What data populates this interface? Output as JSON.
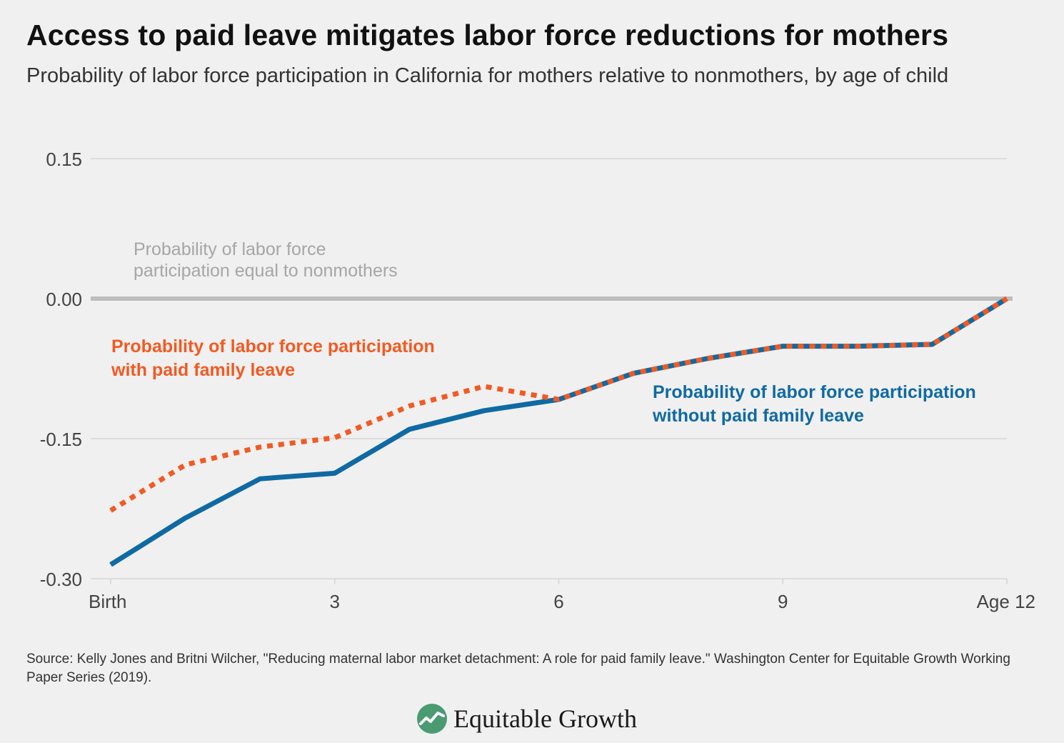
{
  "title": "Access to paid leave mitigates labor force reductions for mothers",
  "subtitle": "Probability of labor force participation in California for mothers relative to nonmothers, by age of child",
  "source": "Source: Kelly Jones and Britni Wilcher, \"Reducing maternal labor market detachment: A role for paid family leave.\" Washington Center for Equitable Growth Working Paper Series (2019).",
  "brand": "Equitable Growth",
  "colors": {
    "with_leave": "#f15a22",
    "without_leave": "#0f6aa3",
    "reference": "#bdbdbd",
    "reference_label": "#a6a6a6",
    "grid": "#d6d6d6",
    "axis_text": "#444444",
    "logo": "#4a9a72"
  },
  "chart_data": {
    "type": "line",
    "title": "Access to paid leave mitigates labor force reductions for mothers",
    "xlabel": "",
    "ylabel": "",
    "x": [
      0,
      1,
      2,
      3,
      4,
      5,
      6,
      7,
      8,
      9,
      10,
      11,
      12
    ],
    "xlim": [
      0,
      12
    ],
    "ylim": [
      -0.3,
      0.15
    ],
    "x_ticks": [
      {
        "value": 0,
        "label": "Birth"
      },
      {
        "value": 3,
        "label": "3"
      },
      {
        "value": 6,
        "label": "6"
      },
      {
        "value": 9,
        "label": "9"
      },
      {
        "value": 12,
        "label": "Age 12"
      }
    ],
    "y_ticks": [
      {
        "value": 0.15,
        "label": "0.15"
      },
      {
        "value": 0.0,
        "label": "0.00"
      },
      {
        "value": -0.15,
        "label": "-0.15"
      },
      {
        "value": -0.3,
        "label": "-0.30"
      }
    ],
    "grid": true,
    "reference_line": {
      "value": 0.0,
      "label_lines": [
        "Probability of labor force",
        "participation equal to nonmothers"
      ]
    },
    "series": [
      {
        "key": "without",
        "label_lines": [
          "Probability of labor force participation",
          "without paid family leave"
        ],
        "style": "solid",
        "values": [
          -0.285,
          -0.235,
          -0.193,
          -0.187,
          -0.14,
          -0.12,
          -0.108,
          -0.08,
          -0.064,
          -0.051,
          -0.051,
          -0.049,
          0.0
        ]
      },
      {
        "key": "with",
        "label_lines": [
          "Probability of labor force participation",
          "with paid family leave"
        ],
        "style": "dotted",
        "values": [
          -0.227,
          -0.178,
          -0.159,
          -0.149,
          -0.115,
          -0.094,
          -0.108,
          -0.08,
          -0.064,
          -0.051,
          -0.051,
          -0.049,
          0.0
        ]
      }
    ]
  }
}
